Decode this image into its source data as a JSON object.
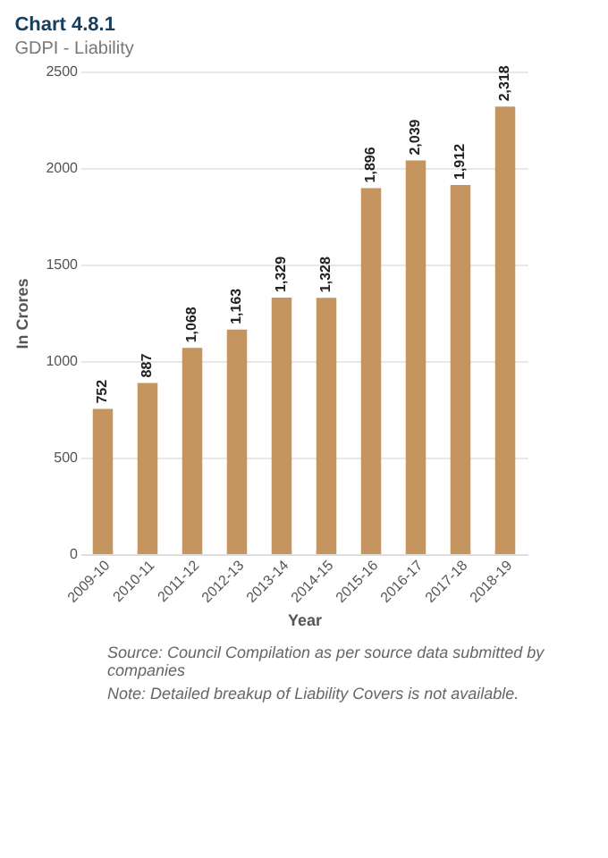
{
  "chart_data": {
    "type": "bar",
    "title": "Chart 4.8.1",
    "subtitle": "GDPI - Liability",
    "xlabel": "Year",
    "ylabel": "In Crores",
    "categories": [
      "2009-10",
      "2010-11",
      "2011-12",
      "2012-13",
      "2013-14",
      "2014-15",
      "2015-16",
      "2016-17",
      "2017-18",
      "2018-19"
    ],
    "values": [
      752,
      887,
      1068,
      1163,
      1329,
      1328,
      1896,
      2039,
      1912,
      2318
    ],
    "value_labels": [
      "752",
      "887",
      "1,068",
      "1,163",
      "1,329",
      "1,328",
      "1,896",
      "2,039",
      "1,912",
      "2,318"
    ],
    "color": "#c4955e",
    "ylim": [
      0,
      2500
    ],
    "yticks": [
      0,
      500,
      1000,
      1500,
      2000,
      2500
    ],
    "grid": "y",
    "annotations": [
      "Source: Council Compilation as per source data submitted by companies",
      "Note: Detailed breakup of Liability Covers is not available."
    ]
  }
}
